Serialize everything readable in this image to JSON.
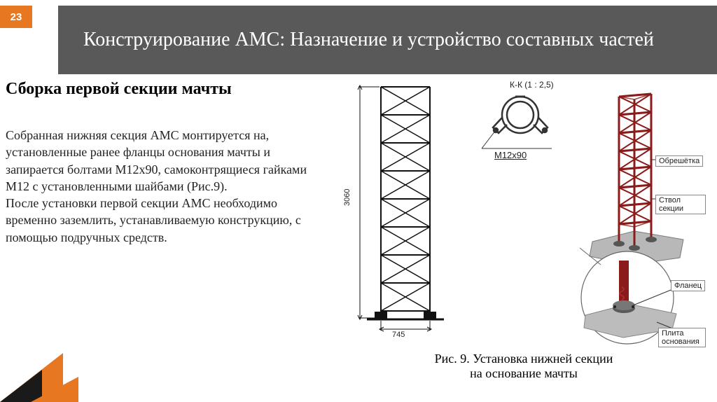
{
  "page_number": "23",
  "header_title": "Конструирование АМС: Назначение и устройство составных частей",
  "subtitle": "Сборка первой секции мачты",
  "body_text": "Собранная нижняя секция АМС монтируется  на, установленные ранее фланцы основания мачты и запирается болтами М12х90, самоконтрящиеся гайками М12 с установленными шайбами (Рис.9).\nПосле установки первой секции АМС необходимо временно заземлить, устанавливаемую конструкцию, с помощью подручных средств.",
  "caption": "Рис. 9. Установка нижней секции\nна основание мачты",
  "diagram": {
    "dim_height": "3060",
    "dim_width": "745",
    "section_label": "К-К  (1 : 2,5)",
    "bolt_label": "М12х90",
    "label_obreshetka": "Обрешётка",
    "label_stvol": "Ствол секции",
    "label_flanec": "Фланец",
    "label_plita": "Плита основания",
    "colors": {
      "tower_lines": "#111111",
      "iso_tower": "#8b1a1a",
      "base_plate": "#b0b0b0",
      "flange": "#6e6e6e",
      "bolt_ring": "#555555",
      "callout_bg": "#ffffff",
      "callout_border": "#555555"
    }
  },
  "decor": {
    "orange": "#e87722",
    "dark": "#1a1a1a",
    "header_bg": "#595959"
  }
}
